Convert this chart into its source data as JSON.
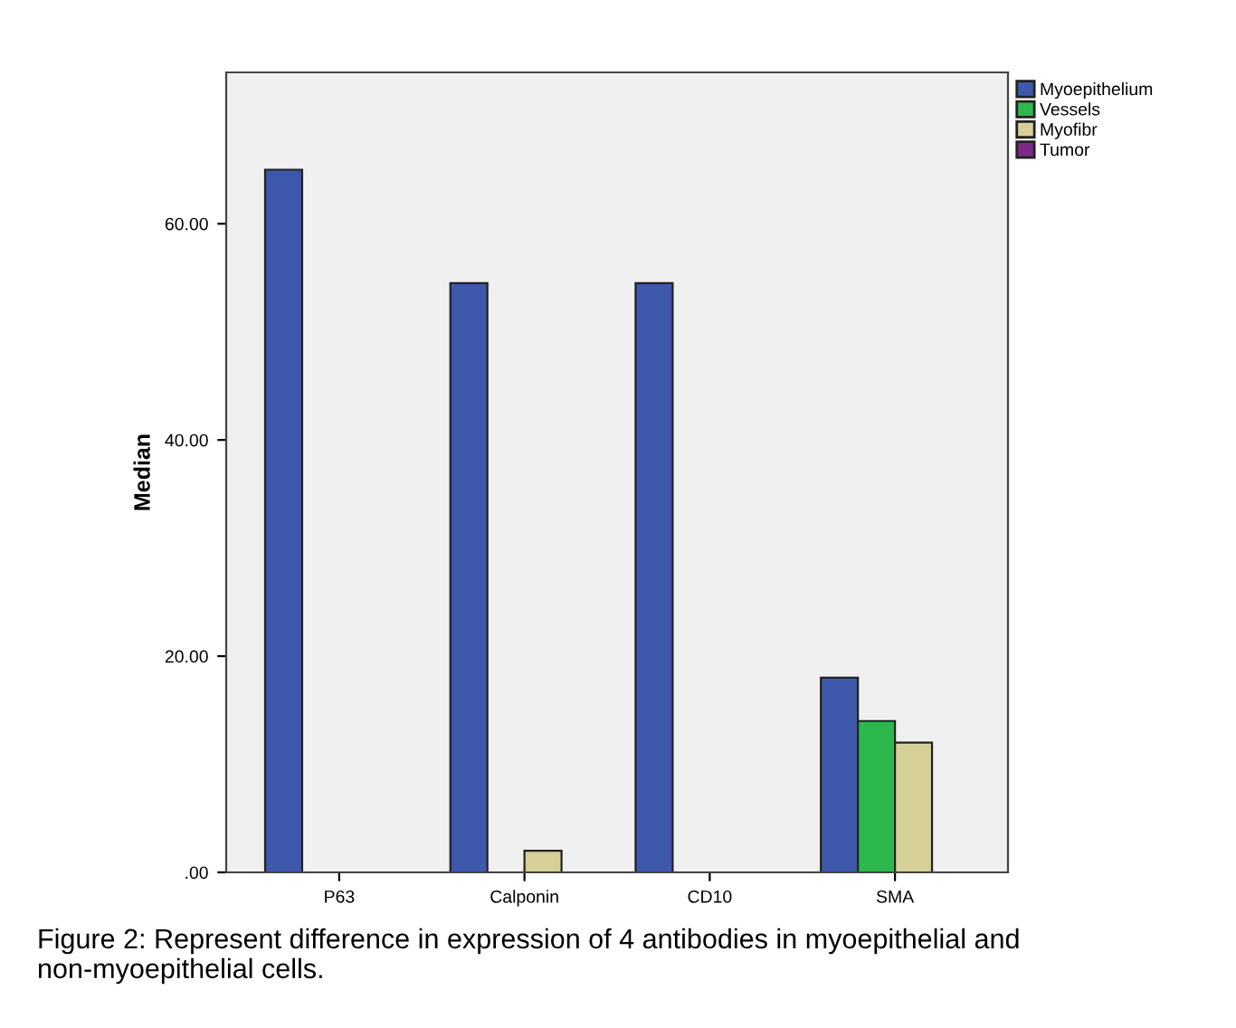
{
  "chart_data": {
    "type": "bar",
    "ylabel": "Median",
    "categories": [
      "P63",
      "Calponin",
      "CD10",
      "SMA"
    ],
    "series": [
      {
        "name": "Myoepithelium",
        "color": "#3e58ac",
        "values": [
          65,
          54.5,
          54.5,
          18
        ]
      },
      {
        "name": "Vessels",
        "color": "#2db84d",
        "values": [
          0,
          0,
          0,
          14
        ]
      },
      {
        "name": "Myofibr",
        "color": "#d6cf98",
        "values": [
          0,
          2,
          0,
          12
        ]
      },
      {
        "name": "Tumor",
        "color": "#7d2a86",
        "values": [
          0,
          0,
          0,
          0
        ]
      }
    ],
    "ylim": [
      0,
      74
    ],
    "yticks": [
      {
        "value": 0,
        "label": ".00"
      },
      {
        "value": 20,
        "label": "20.00"
      },
      {
        "value": 40,
        "label": "40.00"
      },
      {
        "value": 60,
        "label": "60.00"
      }
    ],
    "grid": false,
    "legend": "top right",
    "annotations": [
      "Figure 2: Represent difference in expression of 4 antibodies in myoepithelial and non-myoepithelial cells."
    ]
  }
}
